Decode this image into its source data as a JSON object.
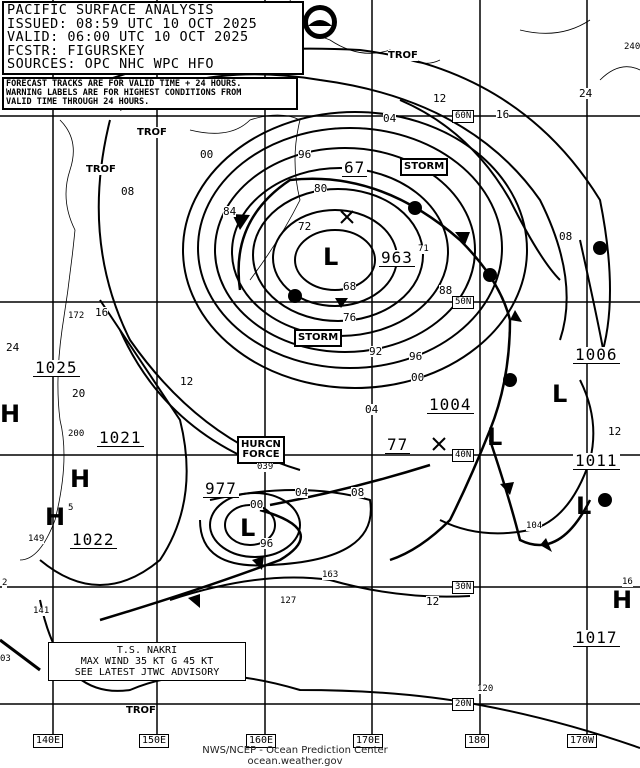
{
  "header": {
    "title": "PACIFIC SURFACE ANALYSIS",
    "issued": "ISSUED: 08:59 UTC 10 OCT 2025",
    "valid": "VALID:  06:00 UTC 10 OCT 2025",
    "forecaster": "FCSTR:  FIGURSKEY",
    "sources": "SOURCES: OPC NHC WPC HFO"
  },
  "note": [
    "FORECAST TRACKS ARE FOR VALID TIME + 24 HOURS.",
    "WARNING LABELS ARE FOR HIGHEST CONDITIONS FROM",
    "VALID TIME THROUGH 24 HOURS."
  ],
  "logo": "NOAA",
  "longitudes": [
    "140E",
    "150E",
    "160E",
    "170E",
    "180",
    "170W"
  ],
  "latitudes": [
    "60N",
    "50N",
    "40N",
    "30N",
    "20N"
  ],
  "pressure_centers": [
    "1025",
    "1021",
    "1022",
    "977",
    "963",
    "67",
    "1004",
    "77",
    "1006",
    "1011",
    "1017"
  ],
  "warnings": {
    "storm": "STORM",
    "hurricane_force": [
      "HURCN",
      "FORCE"
    ]
  },
  "trof": "TROF",
  "isobar_labels": [
    "00",
    "08",
    "96",
    "84",
    "72",
    "80",
    "68",
    "76",
    "92",
    "96",
    "00",
    "04",
    "88",
    "04",
    "12",
    "16",
    "24",
    "240",
    "08",
    "16",
    "12",
    "24",
    "20",
    "12",
    "12",
    "04",
    "08",
    "00",
    "96",
    "71"
  ],
  "obs_labels": [
    "163",
    "127",
    "141",
    "149",
    "200",
    "172",
    "5",
    "039",
    "104",
    "120",
    "16",
    "2",
    "03"
  ],
  "symbols": {
    "high": "H",
    "low": "L"
  },
  "tropical_storm": [
    "T.S. NAKRI",
    "MAX WIND 35 KT G 45 KT",
    "SEE LATEST JTWC ADVISORY"
  ],
  "credit": [
    "NWS/NCEP - Ocean Prediction Center",
    "ocean.weather.gov"
  ]
}
